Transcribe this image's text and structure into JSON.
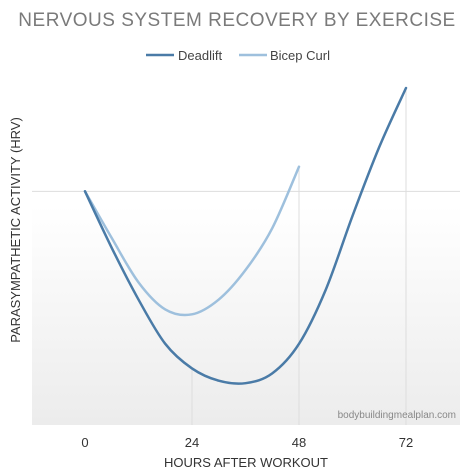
{
  "chart_data": {
    "type": "line",
    "title": "NERVOUS SYSTEM RECOVERY BY EXERCISE",
    "xlabel": "HOURS AFTER WORKOUT",
    "ylabel": "PARASYMPATHETIC ACTIVITY (HRV)",
    "x_ticks": [
      "0",
      "24",
      "48",
      "72"
    ],
    "xlim": [
      0,
      72
    ],
    "ylim": [
      -95,
      42
    ],
    "baseline": 0,
    "legend_position": "top",
    "series": [
      {
        "name": "Deadlift",
        "color": "#4a7ba7",
        "x": [
          0,
          6,
          12,
          18,
          24,
          30,
          36,
          42,
          48,
          54,
          60,
          66,
          72
        ],
        "y": [
          0,
          -23,
          -44,
          -62,
          -72,
          -77,
          -78,
          -74,
          -62,
          -40,
          -10,
          18,
          42
        ]
      },
      {
        "name": "Bicep Curl",
        "color": "#9ec0dd",
        "x": [
          0,
          6,
          12,
          18,
          24,
          30,
          36,
          42,
          48
        ],
        "y": [
          0,
          -19,
          -37,
          -48,
          -50,
          -44,
          -32,
          -15,
          10
        ]
      }
    ],
    "annotation": "bodybuildingmealplan.com"
  }
}
